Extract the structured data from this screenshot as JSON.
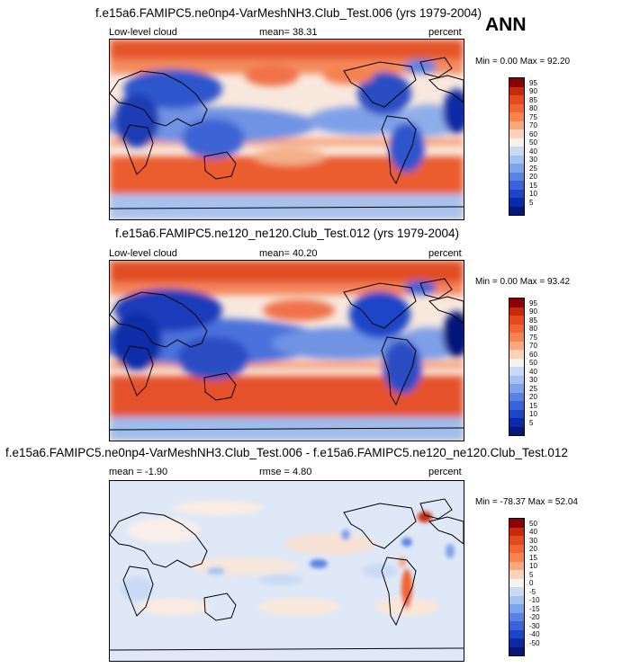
{
  "season": "ANN",
  "panels": [
    {
      "title": "f.e15a6.FAMIPC5.ne0np4-VarMeshNH3.Club_Test.006 (yrs 1979-2004)",
      "left_label": "Low-level cloud",
      "stat": "mean=  38.31",
      "units": "percent",
      "minmax": "Min =   0.00 Max =  92.20",
      "levels": [
        "95",
        "90",
        "85",
        "80",
        "75",
        "70",
        "60",
        "50",
        "40",
        "30",
        "25",
        "20",
        "15",
        "10",
        "5"
      ],
      "colors": [
        "#8b0000",
        "#c8290b",
        "#e34a1c",
        "#f26433",
        "#f7834f",
        "#fba77e",
        "#fdd2b9",
        "#f6f3ee",
        "#c9dbf4",
        "#a4c3f0",
        "#7fa3ea",
        "#5b82e3",
        "#3a63d9",
        "#1f45c7",
        "#0a2aa6",
        "#06177a"
      ]
    },
    {
      "title": "f.e15a6.FAMIPC5.ne120_ne120.Club_Test.012 (yrs 1979-2004)",
      "left_label": "Low-level cloud",
      "stat": "mean=  40.20",
      "units": "percent",
      "minmax": "Min =   0.00 Max =  93.42",
      "levels": [
        "95",
        "90",
        "85",
        "80",
        "75",
        "70",
        "60",
        "50",
        "40",
        "30",
        "25",
        "20",
        "15",
        "10",
        "5"
      ],
      "colors": [
        "#8b0000",
        "#c8290b",
        "#e34a1c",
        "#f26433",
        "#f7834f",
        "#fba77e",
        "#fdd2b9",
        "#f6f3ee",
        "#c9dbf4",
        "#a4c3f0",
        "#7fa3ea",
        "#5b82e3",
        "#3a63d9",
        "#1f45c7",
        "#0a2aa6",
        "#06177a"
      ]
    },
    {
      "title": "f.e15a6.FAMIPC5.ne0np4-VarMeshNH3.Club_Test.006 - f.e15a6.FAMIPC5.ne120_ne120.Club_Test.012",
      "left_label": "mean =  -1.90",
      "stat": "rmse =   4.80",
      "units": "percent",
      "minmax": "Min = -78.37 Max =  52.04",
      "levels": [
        "50",
        "40",
        "30",
        "20",
        "15",
        "10",
        "5",
        "0",
        "-5",
        "-10",
        "-15",
        "-20",
        "-30",
        "-40",
        "-50"
      ],
      "colors": [
        "#8b0000",
        "#c8290b",
        "#e34a1c",
        "#f26433",
        "#f7834f",
        "#fba77e",
        "#fdd2b9",
        "#f6f3ee",
        "#c9dbf4",
        "#a4c3f0",
        "#7fa3ea",
        "#5b82e3",
        "#3a63d9",
        "#1f45c7",
        "#0a2aa6",
        "#06177a"
      ]
    }
  ],
  "chart_data": [
    {
      "type": "heatmap",
      "title": "f.e15a6.FAMIPC5.ne0np4-VarMeshNH3.Club_Test.006 (yrs 1979-2004)",
      "variable": "Low-level cloud",
      "units": "percent",
      "mean": 38.31,
      "min": 0.0,
      "max": 92.2,
      "contour_levels": [
        5,
        10,
        15,
        20,
        25,
        30,
        40,
        50,
        60,
        70,
        75,
        80,
        85,
        90,
        95
      ]
    },
    {
      "type": "heatmap",
      "title": "f.e15a6.FAMIPC5.ne120_ne120.Club_Test.012 (yrs 1979-2004)",
      "variable": "Low-level cloud",
      "units": "percent",
      "mean": 40.2,
      "min": 0.0,
      "max": 93.42,
      "contour_levels": [
        5,
        10,
        15,
        20,
        25,
        30,
        40,
        50,
        60,
        70,
        75,
        80,
        85,
        90,
        95
      ]
    },
    {
      "type": "heatmap",
      "title": "f.e15a6.FAMIPC5.ne0np4-VarMeshNH3.Club_Test.006 - f.e15a6.FAMIPC5.ne120_ne120.Club_Test.012",
      "units": "percent",
      "mean": -1.9,
      "rmse": 4.8,
      "min": -78.37,
      "max": 52.04,
      "contour_levels": [
        -50,
        -40,
        -30,
        -20,
        -15,
        -10,
        -5,
        0,
        5,
        10,
        15,
        20,
        30,
        40,
        50
      ]
    }
  ]
}
